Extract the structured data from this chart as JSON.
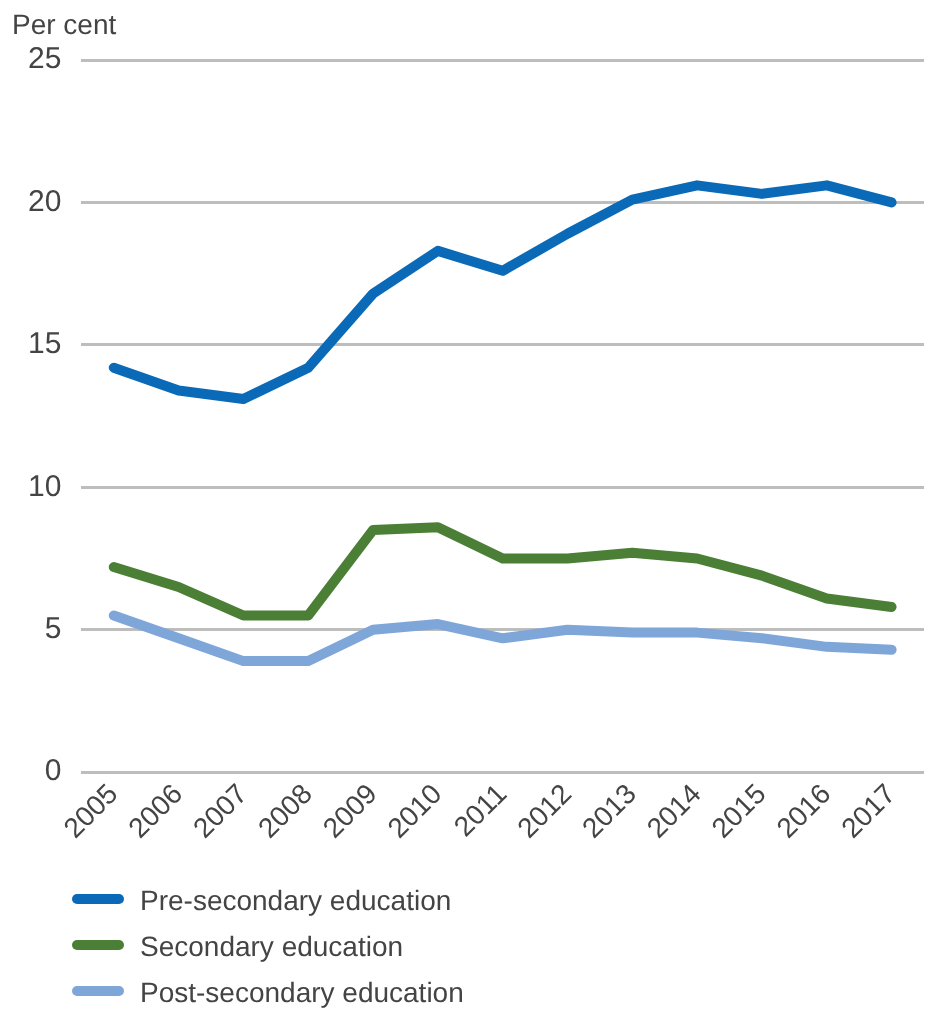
{
  "chart_data": {
    "type": "line",
    "ylabel": "Per cent",
    "categories": [
      "2005",
      "2006",
      "2007",
      "2008",
      "2009",
      "2010",
      "2011",
      "2012",
      "2013",
      "2014",
      "2015",
      "2016",
      "2017"
    ],
    "series": [
      {
        "name": "Pre-secondary education",
        "color": "#0a6ab8",
        "values": [
          14.2,
          13.4,
          13.1,
          14.2,
          16.8,
          18.3,
          17.6,
          18.9,
          20.1,
          20.6,
          20.3,
          20.6,
          20.0
        ]
      },
      {
        "name": "Secondary education",
        "color": "#4a7f35",
        "values": [
          7.2,
          6.5,
          5.5,
          5.5,
          8.5,
          8.6,
          7.5,
          7.5,
          7.7,
          7.5,
          6.9,
          6.1,
          5.8
        ]
      },
      {
        "name": "Post-secondary education",
        "color": "#7fa6d9",
        "values": [
          5.5,
          4.7,
          3.9,
          3.9,
          5.0,
          5.2,
          4.7,
          5.0,
          4.9,
          4.9,
          4.7,
          4.4,
          4.3
        ]
      }
    ],
    "ylim": [
      0,
      25
    ],
    "yticks": [
      0,
      5,
      10,
      15,
      20,
      25
    ],
    "grid": "y",
    "legend": "bottom",
    "marker": "none",
    "line_style": "solid"
  }
}
